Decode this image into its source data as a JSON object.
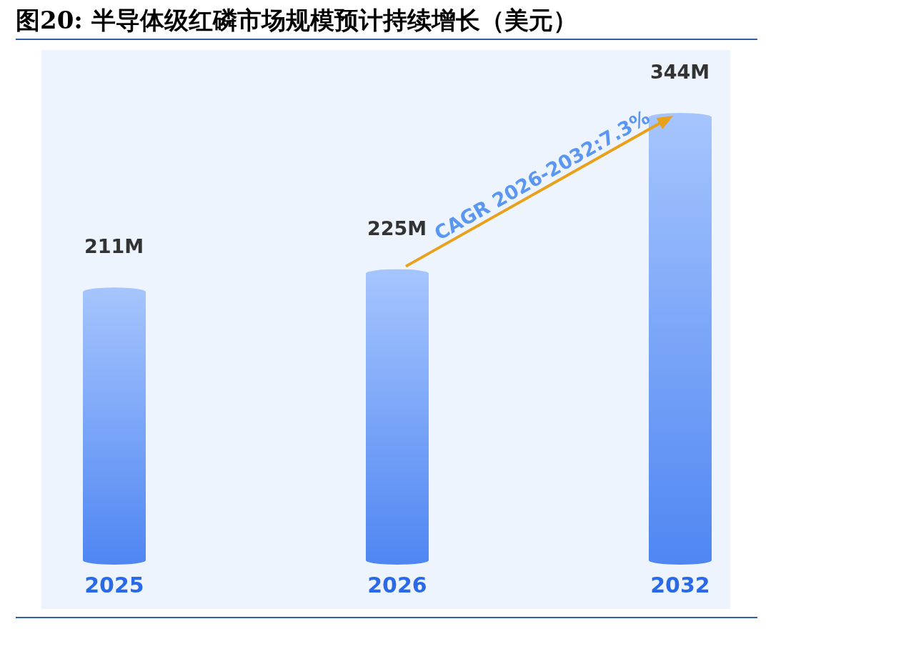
{
  "chart_data": {
    "type": "bar",
    "title": "图20: 半导体级红磷市场规模预计持续增长（美元）",
    "categories": [
      "2025",
      "2026",
      "2032"
    ],
    "values": [
      211,
      225,
      344
    ],
    "value_labels": [
      "211M",
      "225M",
      "344M"
    ],
    "color": "#4f86f2",
    "annotations": [
      "CAGR 2026-2032:7.3%"
    ]
  }
}
